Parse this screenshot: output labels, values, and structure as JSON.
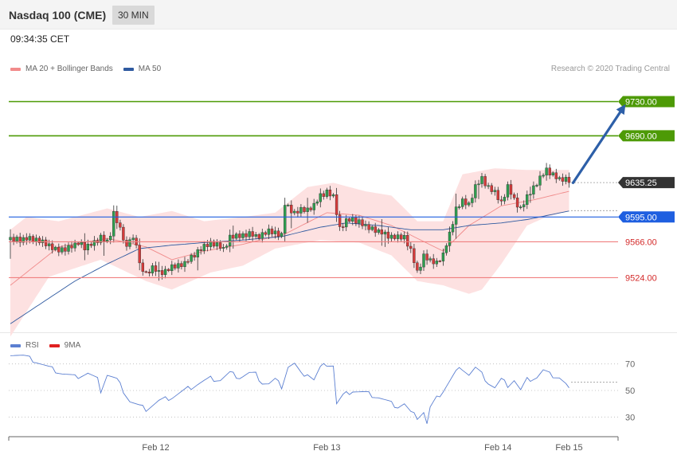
{
  "header": {
    "title": "Nasdaq 100 (CME)",
    "timeframe": "30 MIN",
    "timestamp": "09:34:35 CET"
  },
  "price_legend": [
    {
      "label": "MA 20 + Bollinger Bands",
      "color": "#f28b8b"
    },
    {
      "label": "MA 50",
      "color": "#2f5aa0"
    }
  ],
  "rsi_legend": [
    {
      "label": "RSI",
      "color": "#5b7fd1"
    },
    {
      "label": "9MA",
      "color": "#e02020"
    }
  ],
  "credit": "Research © 2020 Trading Central",
  "colors": {
    "resistance": "#4d9a06",
    "pivot": "#1f5fe0",
    "support": "#f08080",
    "current": "#333333",
    "arrow": "#2d5fa8",
    "band_fill": "#fde1e1",
    "candle_up": "#2e9e4f",
    "candle_down": "#d63a3a"
  },
  "chart_data": [
    {
      "type": "candlestick",
      "name": "Nasdaq 100 (CME) 30 MIN price",
      "ylim": [
        9460,
        9765
      ],
      "x_ticks": [
        "Feb 12",
        "Feb 13",
        "Feb 14",
        "Feb 15"
      ],
      "x_tick_index": [
        45,
        98,
        151,
        173
      ],
      "current_price": {
        "value": 9635.25,
        "label": "9635.25"
      },
      "levels": [
        {
          "value": 9730.0,
          "label": "9730.00",
          "kind": "resistance"
        },
        {
          "value": 9690.0,
          "label": "9690.00",
          "kind": "resistance"
        },
        {
          "value": 9595.0,
          "label": "9595.00",
          "kind": "pivot"
        },
        {
          "value": 9566.0,
          "label": "9566.00",
          "kind": "support"
        },
        {
          "value": 9524.0,
          "label": "9524.00",
          "kind": "support"
        }
      ],
      "forecast_arrow": {
        "from_index": 173,
        "from": 9635,
        "to_index": 189,
        "to": 9727
      },
      "anchors": [
        [
          0,
          9570
        ],
        [
          3,
          9567
        ],
        [
          6,
          9570
        ],
        [
          10,
          9567
        ],
        [
          12,
          9560
        ],
        [
          15,
          9555
        ],
        [
          18,
          9560
        ],
        [
          21,
          9565
        ],
        [
          23,
          9558
        ],
        [
          26,
          9565
        ],
        [
          28,
          9572
        ],
        [
          30,
          9567
        ],
        [
          31,
          9575
        ],
        [
          32,
          9598
        ],
        [
          33,
          9590
        ],
        [
          34,
          9580
        ],
        [
          36,
          9558
        ],
        [
          37,
          9572
        ],
        [
          39,
          9565
        ],
        [
          40,
          9540
        ],
        [
          42,
          9527
        ],
        [
          44,
          9535
        ],
        [
          46,
          9530
        ],
        [
          48,
          9532
        ],
        [
          50,
          9538
        ],
        [
          52,
          9537
        ],
        [
          54,
          9540
        ],
        [
          56,
          9548
        ],
        [
          58,
          9555
        ],
        [
          60,
          9562
        ],
        [
          62,
          9563
        ],
        [
          64,
          9562
        ],
        [
          66,
          9557
        ],
        [
          68,
          9572
        ],
        [
          70,
          9574
        ],
        [
          72,
          9572
        ],
        [
          74,
          9575
        ],
        [
          76,
          9572
        ],
        [
          78,
          9575
        ],
        [
          80,
          9580
        ],
        [
          82,
          9575
        ],
        [
          84,
          9573
        ],
        [
          85,
          9610
        ],
        [
          88,
          9600
        ],
        [
          90,
          9605
        ],
        [
          92,
          9602
        ],
        [
          94,
          9608
        ],
        [
          96,
          9620
        ],
        [
          98,
          9625
        ],
        [
          100,
          9620
        ],
        [
          102,
          9580
        ],
        [
          104,
          9590
        ],
        [
          106,
          9592
        ],
        [
          108,
          9590
        ],
        [
          110,
          9585
        ],
        [
          112,
          9580
        ],
        [
          114,
          9577
        ],
        [
          116,
          9575
        ],
        [
          118,
          9572
        ],
        [
          120,
          9573
        ],
        [
          122,
          9570
        ],
        [
          124,
          9555
        ],
        [
          126,
          9530
        ],
        [
          128,
          9550
        ],
        [
          130,
          9545
        ],
        [
          132,
          9540
        ],
        [
          134,
          9550
        ],
        [
          136,
          9575
        ],
        [
          138,
          9605
        ],
        [
          140,
          9615
        ],
        [
          142,
          9608
        ],
        [
          144,
          9630
        ],
        [
          146,
          9640
        ],
        [
          148,
          9630
        ],
        [
          150,
          9625
        ],
        [
          152,
          9610
        ],
        [
          154,
          9630
        ],
        [
          156,
          9615
        ],
        [
          158,
          9605
        ],
        [
          160,
          9620
        ],
        [
          162,
          9628
        ],
        [
          164,
          9640
        ],
        [
          166,
          9650
        ],
        [
          168,
          9645
        ],
        [
          170,
          9640
        ],
        [
          172,
          9638
        ],
        [
          173,
          9635.25
        ]
      ],
      "ma20_anchors": [
        [
          0,
          9515
        ],
        [
          15,
          9560
        ],
        [
          30,
          9570
        ],
        [
          42,
          9560
        ],
        [
          50,
          9545
        ],
        [
          60,
          9555
        ],
        [
          72,
          9563
        ],
        [
          85,
          9575
        ],
        [
          98,
          9600
        ],
        [
          108,
          9597
        ],
        [
          118,
          9585
        ],
        [
          126,
          9570
        ],
        [
          134,
          9555
        ],
        [
          142,
          9585
        ],
        [
          152,
          9608
        ],
        [
          162,
          9615
        ],
        [
          173,
          9625
        ]
      ],
      "bb_upper_anchors": [
        [
          0,
          9580
        ],
        [
          5,
          9595
        ],
        [
          15,
          9590
        ],
        [
          30,
          9605
        ],
        [
          40,
          9595
        ],
        [
          50,
          9602
        ],
        [
          60,
          9590
        ],
        [
          72,
          9595
        ],
        [
          82,
          9600
        ],
        [
          92,
          9630
        ],
        [
          100,
          9635
        ],
        [
          110,
          9625
        ],
        [
          118,
          9620
        ],
        [
          126,
          9590
        ],
        [
          134,
          9590
        ],
        [
          140,
          9645
        ],
        [
          150,
          9652
        ],
        [
          160,
          9650
        ],
        [
          173,
          9650
        ]
      ],
      "bb_lower_anchors": [
        [
          0,
          9455
        ],
        [
          12,
          9525
        ],
        [
          28,
          9545
        ],
        [
          42,
          9520
        ],
        [
          50,
          9510
        ],
        [
          62,
          9530
        ],
        [
          72,
          9538
        ],
        [
          82,
          9558
        ],
        [
          96,
          9568
        ],
        [
          108,
          9565
        ],
        [
          118,
          9550
        ],
        [
          126,
          9520
        ],
        [
          134,
          9515
        ],
        [
          142,
          9505
        ],
        [
          146,
          9510
        ],
        [
          152,
          9540
        ],
        [
          160,
          9585
        ],
        [
          166,
          9595
        ],
        [
          173,
          9602
        ]
      ],
      "ma50_anchors": [
        [
          0,
          9470
        ],
        [
          10,
          9495
        ],
        [
          20,
          9520
        ],
        [
          30,
          9540
        ],
        [
          40,
          9558
        ],
        [
          50,
          9562
        ],
        [
          60,
          9565
        ],
        [
          72,
          9568
        ],
        [
          84,
          9572
        ],
        [
          96,
          9583
        ],
        [
          104,
          9588
        ],
        [
          114,
          9585
        ],
        [
          124,
          9580
        ],
        [
          134,
          9580
        ],
        [
          142,
          9585
        ],
        [
          152,
          9588
        ],
        [
          160,
          9592
        ],
        [
          173,
          9602
        ]
      ]
    },
    {
      "type": "line",
      "name": "RSI",
      "ylim": [
        20,
        80
      ],
      "y_ticks": [
        70,
        50,
        30
      ],
      "grid": true,
      "current_value": 52,
      "anchors": [
        [
          0,
          78
        ],
        [
          4,
          76
        ],
        [
          8,
          72
        ],
        [
          12,
          67
        ],
        [
          16,
          63
        ],
        [
          20,
          60
        ],
        [
          24,
          63
        ],
        [
          27,
          58
        ],
        [
          28,
          50
        ],
        [
          30,
          62
        ],
        [
          33,
          58
        ],
        [
          35,
          50
        ],
        [
          37,
          42
        ],
        [
          40,
          38
        ],
        [
          42,
          36
        ],
        [
          46,
          42
        ],
        [
          50,
          45
        ],
        [
          54,
          50
        ],
        [
          58,
          55
        ],
        [
          62,
          59
        ],
        [
          65,
          58
        ],
        [
          68,
          63
        ],
        [
          71,
          60
        ],
        [
          74,
          63
        ],
        [
          76,
          62
        ],
        [
          78,
          56
        ],
        [
          80,
          55
        ],
        [
          82,
          58
        ],
        [
          84,
          53
        ],
        [
          86,
          68
        ],
        [
          88,
          70
        ],
        [
          90,
          62
        ],
        [
          92,
          63
        ],
        [
          94,
          58
        ],
        [
          96,
          67
        ],
        [
          98,
          70
        ],
        [
          100,
          69
        ],
        [
          101,
          40
        ],
        [
          103,
          46
        ],
        [
          106,
          50
        ],
        [
          110,
          48
        ],
        [
          114,
          45
        ],
        [
          118,
          40
        ],
        [
          120,
          38
        ],
        [
          122,
          40
        ],
        [
          124,
          33
        ],
        [
          126,
          30
        ],
        [
          128,
          34
        ],
        [
          129,
          25
        ],
        [
          130,
          37
        ],
        [
          132,
          44
        ],
        [
          134,
          50
        ],
        [
          136,
          57
        ],
        [
          138,
          64
        ],
        [
          140,
          67
        ],
        [
          142,
          62
        ],
        [
          144,
          67
        ],
        [
          146,
          62
        ],
        [
          148,
          56
        ],
        [
          150,
          52
        ],
        [
          152,
          58
        ],
        [
          154,
          54
        ],
        [
          156,
          58
        ],
        [
          158,
          50
        ],
        [
          160,
          58
        ],
        [
          163,
          60
        ],
        [
          165,
          65
        ],
        [
          167,
          62
        ],
        [
          170,
          60
        ],
        [
          173,
          52
        ]
      ]
    }
  ]
}
